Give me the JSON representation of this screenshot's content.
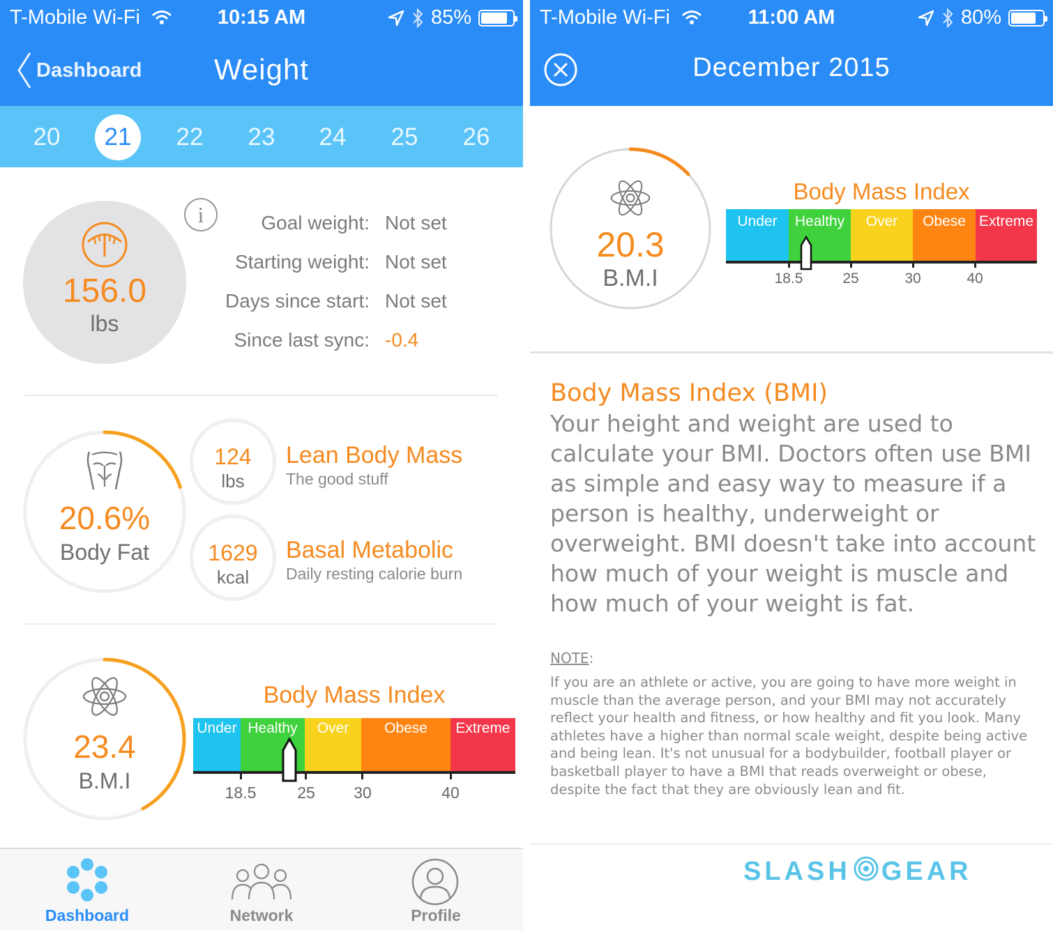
{
  "colors": {
    "nav_blue": "#2a8cf7",
    "strip_blue": "#5ac4f8",
    "accent_orange": "#f58a1f",
    "under": "#1fc3f0",
    "healthy": "#3fd23c",
    "over": "#f8d21c",
    "obese": "#ff8512",
    "extreme": "#f4364a"
  },
  "left": {
    "status": {
      "carrier": "T-Mobile Wi-Fi",
      "time": "10:15 AM",
      "battery": "85%",
      "battery_level": 0.85
    },
    "nav": {
      "back_label": "Dashboard",
      "title": "Weight"
    },
    "dates": [
      "20",
      "21",
      "22",
      "23",
      "24",
      "25",
      "26"
    ],
    "selected_date": "21",
    "weight": {
      "value": "156.0",
      "unit": "lbs",
      "icon": "scale-icon"
    },
    "stats": [
      {
        "label": "Goal weight:",
        "value": "Not set"
      },
      {
        "label": "Starting weight:",
        "value": "Not set"
      },
      {
        "label": "Days since start:",
        "value": "Not set"
      },
      {
        "label": "Since last sync:",
        "value": "-0.4"
      }
    ],
    "body_fat": {
      "value": "20.6%",
      "label": "Body Fat",
      "progress": 0.2
    },
    "lean_mass": {
      "value": "124",
      "unit": "lbs",
      "title": "Lean Body Mass",
      "subtitle": "The good stuff"
    },
    "basal": {
      "value": "1629",
      "unit": "kcal",
      "title": "Basal Metabolic",
      "subtitle": "Daily resting calorie burn"
    },
    "bmi": {
      "value": "23.4",
      "label": "B.M.I",
      "progress": 0.42,
      "title": "Body Mass Index",
      "segments": [
        "Under",
        "Healthy",
        "Over",
        "Obese",
        "Extreme"
      ],
      "ticks": [
        "18.5",
        "25",
        "30",
        "40"
      ]
    },
    "tabs": [
      {
        "label": "Dashboard",
        "icon": "dashboard-icon"
      },
      {
        "label": "Network",
        "icon": "network-icon"
      },
      {
        "label": "Profile",
        "icon": "profile-icon"
      }
    ]
  },
  "right": {
    "status": {
      "carrier": "T-Mobile Wi-Fi",
      "time": "11:00 AM",
      "battery": "80%",
      "battery_level": 0.8
    },
    "nav": {
      "title": "December 2015",
      "close_icon": "close-icon"
    },
    "bmi": {
      "value": "20.3",
      "label": "B.M.I",
      "progress": 0.13,
      "title": "Body Mass Index",
      "segments": [
        "Under",
        "Healthy",
        "Over",
        "Obese",
        "Extreme"
      ],
      "ticks": [
        "18.5",
        "25",
        "30",
        "40"
      ]
    },
    "info": {
      "heading": "Body Mass Index (BMI)",
      "body": "Your height and weight are used to calculate your BMI. Doctors often use BMI as simple and easy way to measure if a person is healthy, underweight or overweight. BMI doesn't take into account how much of your weight is muscle and how much of your weight is fat.",
      "note_label": "NOTE",
      "note_colon": ":",
      "note_body": "If you are an athlete or active, you are going to have more weight in muscle than the average person, and your BMI may not accurately reflect your health and fitness, or how healthy and fit you look. Many athletes have a higher than normal scale weight, despite being active and being lean. It's not unusual for a bodybuilder, football player or basketball player to have a BMI that reads overweight or obese, despite the fact that they are obviously lean and fit."
    },
    "brand": {
      "left": "SLASH",
      "right": "GEAR"
    }
  }
}
